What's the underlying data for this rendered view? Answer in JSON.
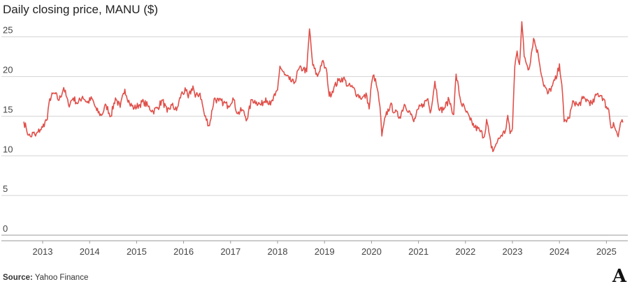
{
  "chart_data": {
    "type": "line",
    "title": "Daily closing price, MANU ($)",
    "xlabel": "",
    "ylabel": "",
    "ylim": [
      0,
      27
    ],
    "y_ticks": [
      0,
      5,
      10,
      15,
      20,
      25
    ],
    "x_ticks": [
      "2013",
      "2014",
      "2015",
      "2016",
      "2017",
      "2018",
      "2019",
      "2020",
      "2021",
      "2022",
      "2023",
      "2024",
      "2025"
    ],
    "xlim": [
      2012.6,
      2025.5
    ],
    "grid": true,
    "color": "#e0504a",
    "series": [
      {
        "x": [
          2012.6,
          2012.65,
          2012.7,
          2012.75,
          2012.8,
          2012.85,
          2012.9,
          2012.95,
          2013.0,
          2013.05,
          2013.1,
          2013.15,
          2013.25,
          2013.35,
          2013.45,
          2013.55,
          2013.65,
          2013.75,
          2013.85,
          2013.95,
          2014.05,
          2014.15,
          2014.25,
          2014.35,
          2014.45,
          2014.55,
          2014.65,
          2014.75,
          2014.85,
          2014.95,
          2015.05,
          2015.15,
          2015.25,
          2015.35,
          2015.45,
          2015.55,
          2015.65,
          2015.75,
          2015.85,
          2015.95,
          2016.05,
          2016.1,
          2016.2,
          2016.25,
          2016.35,
          2016.45,
          2016.55,
          2016.65,
          2016.75,
          2016.85,
          2016.95,
          2017.05,
          2017.15,
          2017.25,
          2017.35,
          2017.45,
          2017.55,
          2017.65,
          2017.75,
          2017.85,
          2017.95,
          2018.0,
          2018.05,
          2018.15,
          2018.25,
          2018.35,
          2018.45,
          2018.55,
          2018.62,
          2018.68,
          2018.75,
          2018.85,
          2018.95,
          2019.05,
          2019.1,
          2019.2,
          2019.3,
          2019.4,
          2019.5,
          2019.6,
          2019.7,
          2019.8,
          2019.9,
          2019.95,
          2020.0,
          2020.05,
          2020.12,
          2020.18,
          2020.22,
          2020.3,
          2020.4,
          2020.5,
          2020.6,
          2020.7,
          2020.8,
          2020.9,
          2021.0,
          2021.1,
          2021.2,
          2021.25,
          2021.35,
          2021.45,
          2021.55,
          2021.65,
          2021.75,
          2021.8,
          2021.9,
          2022.0,
          2022.1,
          2022.2,
          2022.3,
          2022.4,
          2022.45,
          2022.55,
          2022.6,
          2022.65,
          2022.75,
          2022.85,
          2022.9,
          2022.95,
          2023.0,
          2023.05,
          2023.1,
          2023.15,
          2023.2,
          2023.25,
          2023.35,
          2023.45,
          2023.55,
          2023.65,
          2023.75,
          2023.85,
          2023.95,
          2024.0,
          2024.05,
          2024.1,
          2024.2,
          2024.3,
          2024.4,
          2024.5,
          2024.6,
          2024.7,
          2024.8,
          2024.9,
          2025.0,
          2025.05,
          2025.1,
          2025.15,
          2025.2,
          2025.25,
          2025.3,
          2025.35
        ],
        "y": [
          14.3,
          13.5,
          12.6,
          12.4,
          12.9,
          12.5,
          13.0,
          13.3,
          13.6,
          14.3,
          14.6,
          17.2,
          17.9,
          17.0,
          18.6,
          16.4,
          17.3,
          16.6,
          17.5,
          16.7,
          17.2,
          15.7,
          15.1,
          16.4,
          15.0,
          17.3,
          16.1,
          18.4,
          16.6,
          16.0,
          16.4,
          16.8,
          16.2,
          15.6,
          16.1,
          17.0,
          15.5,
          16.4,
          15.7,
          17.8,
          18.2,
          17.3,
          18.8,
          17.4,
          17.9,
          15.0,
          13.8,
          17.2,
          16.9,
          16.7,
          16.3,
          17.3,
          15.3,
          15.8,
          14.6,
          17.1,
          16.8,
          16.4,
          17.3,
          16.4,
          17.6,
          18.3,
          21.3,
          20.2,
          19.6,
          19.1,
          20.9,
          21.0,
          20.6,
          26.0,
          21.4,
          20.0,
          21.9,
          20.5,
          17.5,
          18.6,
          19.5,
          19.8,
          18.8,
          18.6,
          17.7,
          17.3,
          17.6,
          15.9,
          19.1,
          20.2,
          18.5,
          16.2,
          12.5,
          15.0,
          16.4,
          15.5,
          14.9,
          16.5,
          15.7,
          14.3,
          15.9,
          16.5,
          17.2,
          15.4,
          19.4,
          15.7,
          16.0,
          17.1,
          15.2,
          20.3,
          16.8,
          15.7,
          14.5,
          13.6,
          13.2,
          12.4,
          14.6,
          11.0,
          10.7,
          11.5,
          12.5,
          13.1,
          15.1,
          12.8,
          13.5,
          21.3,
          23.2,
          21.5,
          26.9,
          22.5,
          20.9,
          24.8,
          22.7,
          19.3,
          17.8,
          18.8,
          20.1,
          21.6,
          19.0,
          14.3,
          14.7,
          16.9,
          16.3,
          17.2,
          17.0,
          16.5,
          17.8,
          17.6,
          16.2,
          15.8,
          13.5,
          14.2,
          13.2,
          12.4,
          14.2,
          14.2
        ]
      }
    ]
  },
  "source": {
    "label": "Source:",
    "value": "Yahoo Finance"
  },
  "logo": {
    "text": "A"
  }
}
